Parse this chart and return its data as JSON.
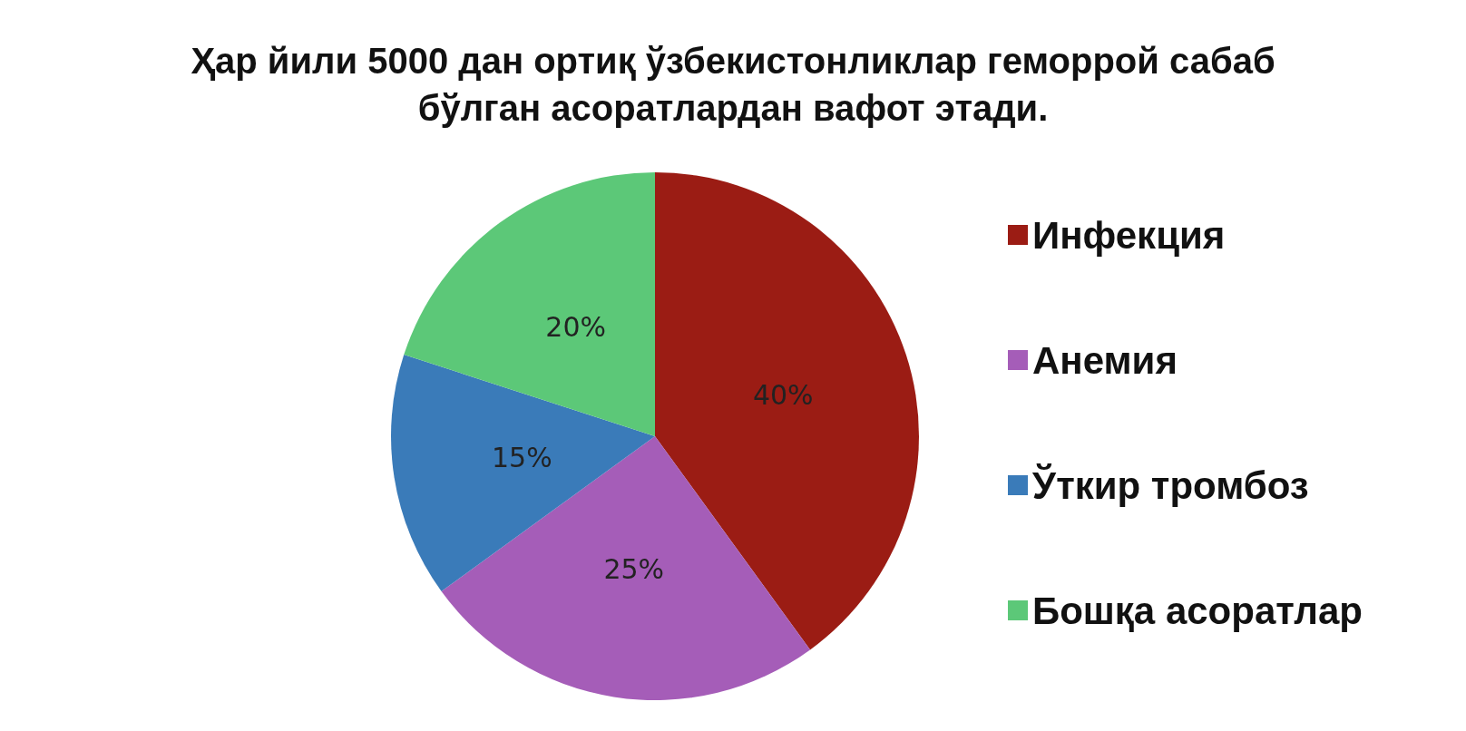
{
  "chart_data": {
    "type": "pie",
    "title": "Ҳар йили 5000 дан ортиқ ўзбекистонликлар геморрой сабаб\nбўлган асоратлардан вафот этади.",
    "categories": [
      "Инфекция",
      "Анемия",
      "Ўткир тромбоз",
      "Бошқа асоратлар"
    ],
    "values": [
      40,
      25,
      15,
      20
    ],
    "colors": [
      "#9b1c14",
      "#a55db8",
      "#3a7bb9",
      "#5cc878"
    ],
    "value_labels": [
      "40%",
      "25%",
      "15%",
      "20%"
    ],
    "legend": "right"
  }
}
